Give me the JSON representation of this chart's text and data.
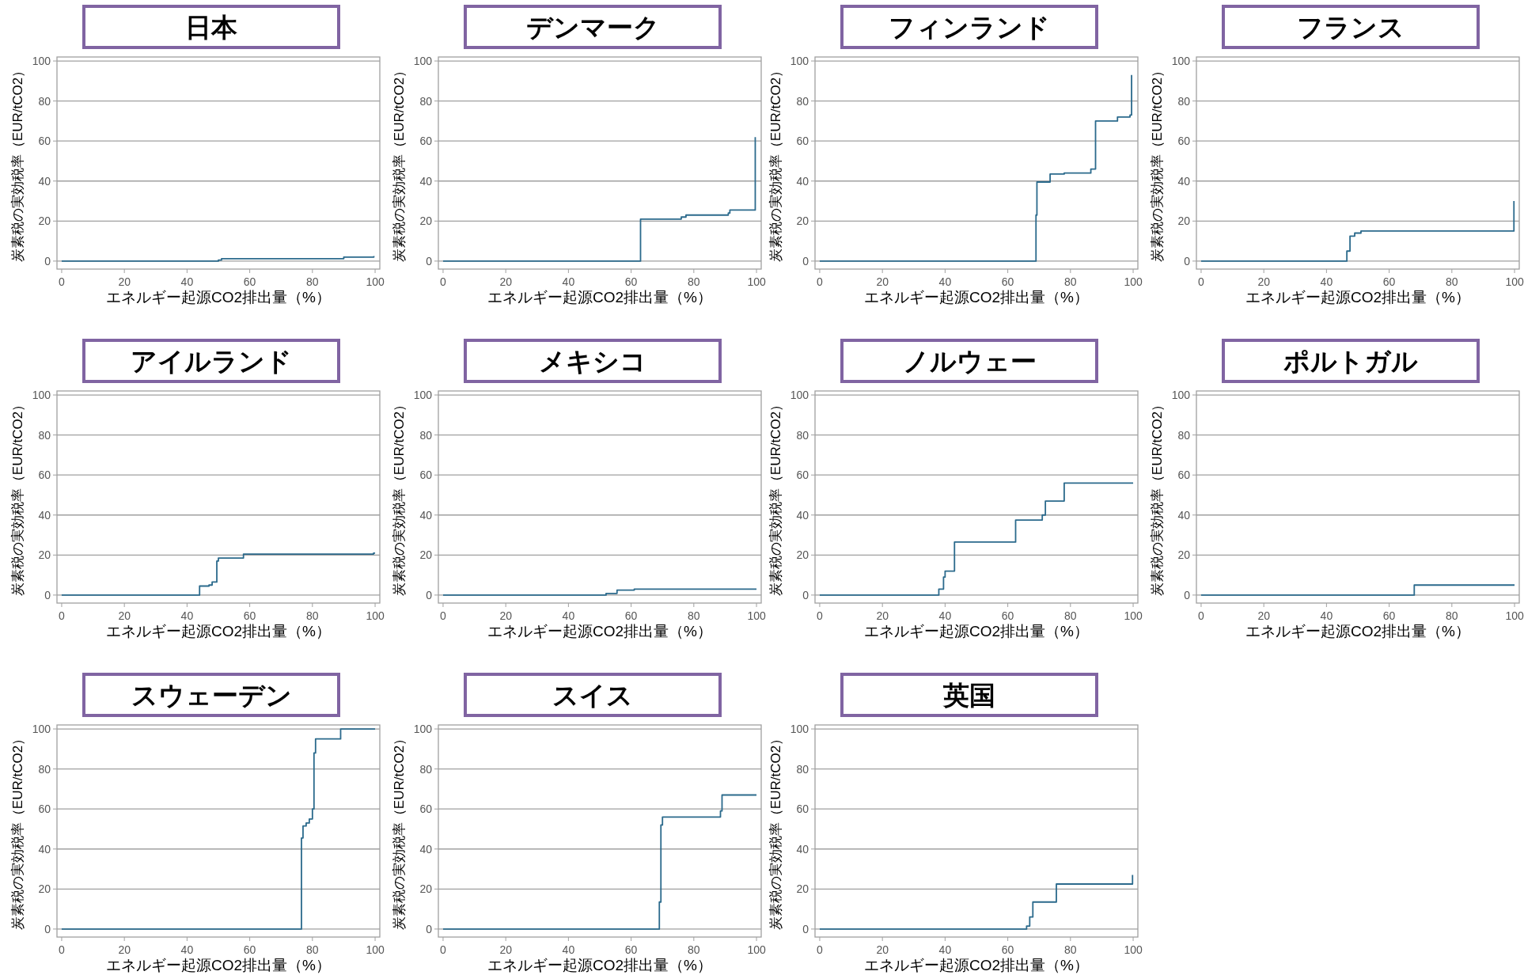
{
  "chart_data": [
    {
      "type": "step",
      "title": "日本",
      "xlabel": "エネルギー起源CO2排出量（%）",
      "ylabel": "炭素税の実効税率（EUR/tCO2）",
      "color": "#2b6a8c",
      "x": [
        0,
        50,
        51,
        90,
        99.6
      ],
      "values": [
        0,
        0.5,
        1.2,
        2,
        2.5
      ],
      "xlim": [
        -1.5,
        101.5
      ],
      "ylim": [
        -4,
        102
      ],
      "xticks": [
        0,
        20,
        40,
        60,
        80,
        100
      ],
      "yticks": [
        0,
        20,
        40,
        60,
        80,
        100
      ],
      "grid": "y"
    },
    {
      "type": "step",
      "title": "デンマーク",
      "xlabel": "エネルギー起源CO2排出量（%）",
      "ylabel": "炭素税の実効税率（EUR/tCO2）",
      "color": "#2b6a8c",
      "x": [
        0,
        63,
        76,
        77.5,
        91,
        91.5,
        99.6
      ],
      "values": [
        0,
        21,
        22,
        23,
        24,
        25.5,
        62
      ],
      "xlim": [
        -1.5,
        101.5
      ],
      "ylim": [
        -4,
        102
      ],
      "xticks": [
        0,
        20,
        40,
        60,
        80,
        100
      ],
      "yticks": [
        0,
        20,
        40,
        60,
        80,
        100
      ],
      "grid": "y"
    },
    {
      "type": "step",
      "title": "フィンランド",
      "xlabel": "エネルギー起源CO2排出量（%）",
      "ylabel": "炭素税の実効税率（EUR/tCO2）",
      "color": "#2b6a8c",
      "x": [
        0,
        69,
        69.3,
        73.5,
        78,
        86.5,
        88,
        95,
        99,
        99.5
      ],
      "values": [
        0,
        23,
        39.5,
        43.5,
        44,
        46,
        70,
        72,
        73,
        93
      ],
      "xlim": [
        -1.5,
        101.5
      ],
      "ylim": [
        -4,
        102
      ],
      "xticks": [
        0,
        20,
        40,
        60,
        80,
        100
      ],
      "yticks": [
        0,
        20,
        40,
        60,
        80,
        100
      ],
      "grid": "y"
    },
    {
      "type": "step",
      "title": "フランス",
      "xlabel": "エネルギー起源CO2排出量（%）",
      "ylabel": "炭素税の実効税率（EUR/tCO2）",
      "color": "#2b6a8c",
      "x": [
        0,
        46.5,
        47.5,
        49,
        51,
        99.8
      ],
      "values": [
        0,
        5,
        12.5,
        14,
        15,
        30
      ],
      "xlim": [
        -1.5,
        101.5
      ],
      "ylim": [
        -4,
        102
      ],
      "xticks": [
        0,
        20,
        40,
        60,
        80,
        100
      ],
      "yticks": [
        0,
        20,
        40,
        60,
        80,
        100
      ],
      "grid": "y"
    },
    {
      "type": "step",
      "title": "アイルランド",
      "xlabel": "エネルギー起源CO2排出量（%）",
      "ylabel": "炭素税の実効税率（EUR/tCO2）",
      "color": "#2b6a8c",
      "x": [
        0,
        44,
        47,
        48,
        49.5,
        50,
        58,
        99.5,
        100
      ],
      "values": [
        0,
        4.5,
        5,
        6.5,
        17,
        18.5,
        20.5,
        21,
        21
      ],
      "xlim": [
        -1.5,
        101.5
      ],
      "ylim": [
        -4,
        102
      ],
      "xticks": [
        0,
        20,
        40,
        60,
        80,
        100
      ],
      "yticks": [
        0,
        20,
        40,
        60,
        80,
        100
      ],
      "grid": "y"
    },
    {
      "type": "step",
      "title": "メキシコ",
      "xlabel": "エネルギー起源CO2排出量（%）",
      "ylabel": "炭素税の実効税率（EUR/tCO2）",
      "color": "#2b6a8c",
      "x": [
        0,
        52,
        55.5,
        61,
        100
      ],
      "values": [
        0,
        0.8,
        2.5,
        3,
        3
      ],
      "xlim": [
        -1.5,
        101.5
      ],
      "ylim": [
        -4,
        102
      ],
      "xticks": [
        0,
        20,
        40,
        60,
        80,
        100
      ],
      "yticks": [
        0,
        20,
        40,
        60,
        80,
        100
      ],
      "grid": "y"
    },
    {
      "type": "step",
      "title": "ノルウェー",
      "xlabel": "エネルギー起源CO2排出量（%）",
      "ylabel": "炭素税の実効税率（EUR/tCO2）",
      "color": "#2b6a8c",
      "x": [
        0,
        38,
        39.5,
        40,
        43,
        62.5,
        71,
        72,
        78,
        100
      ],
      "values": [
        0,
        3,
        9,
        12,
        26.5,
        37.5,
        40,
        47,
        56,
        56
      ],
      "xlim": [
        -1.5,
        101.5
      ],
      "ylim": [
        -4,
        102
      ],
      "xticks": [
        0,
        20,
        40,
        60,
        80,
        100
      ],
      "yticks": [
        0,
        20,
        40,
        60,
        80,
        100
      ],
      "grid": "y"
    },
    {
      "type": "step",
      "title": "ポルトガル",
      "xlabel": "エネルギー起源CO2排出量（%）",
      "ylabel": "炭素税の実効税率（EUR/tCO2）",
      "color": "#2b6a8c",
      "x": [
        0,
        68,
        100
      ],
      "values": [
        0,
        5,
        5
      ],
      "xlim": [
        -1.5,
        101.5
      ],
      "ylim": [
        -4,
        102
      ],
      "xticks": [
        0,
        20,
        40,
        60,
        80,
        100
      ],
      "yticks": [
        0,
        20,
        40,
        60,
        80,
        100
      ],
      "grid": "y"
    },
    {
      "type": "step",
      "title": "スウェーデン",
      "xlabel": "エネルギー起源CO2排出量（%）",
      "ylabel": "炭素税の実効税率（EUR/tCO2）",
      "color": "#2b6a8c",
      "x": [
        0,
        76.5,
        77,
        78,
        79,
        80,
        80.5,
        81,
        89,
        100
      ],
      "values": [
        0,
        45.5,
        51.5,
        53,
        55,
        60,
        88,
        95,
        100,
        100
      ],
      "xlim": [
        -1.5,
        101.5
      ],
      "ylim": [
        -4,
        102
      ],
      "xticks": [
        0,
        20,
        40,
        60,
        80,
        100
      ],
      "yticks": [
        0,
        20,
        40,
        60,
        80,
        100
      ],
      "grid": "y"
    },
    {
      "type": "step",
      "title": "スイス",
      "xlabel": "エネルギー起源CO2排出量（%）",
      "ylabel": "炭素税の実効税率（EUR/tCO2）",
      "color": "#2b6a8c",
      "x": [
        0,
        69,
        69.5,
        70,
        88.5,
        89,
        100
      ],
      "values": [
        0,
        13.5,
        52,
        56,
        59,
        67,
        67
      ],
      "xlim": [
        -1.5,
        101.5
      ],
      "ylim": [
        -4,
        102
      ],
      "xticks": [
        0,
        20,
        40,
        60,
        80,
        100
      ],
      "yticks": [
        0,
        20,
        40,
        60,
        80,
        100
      ],
      "grid": "y"
    },
    {
      "type": "step",
      "title": "英国",
      "xlabel": "エネルギー起源CO2排出量（%）",
      "ylabel": "炭素税の実効税率（EUR/tCO2）",
      "color": "#2b6a8c",
      "x": [
        0,
        66,
        67,
        68,
        75.5,
        99.8
      ],
      "values": [
        0,
        1.5,
        6,
        13.5,
        22.5,
        27
      ],
      "xlim": [
        -1.5,
        101.5
      ],
      "ylim": [
        -4,
        102
      ],
      "xticks": [
        0,
        20,
        40,
        60,
        80,
        100
      ],
      "yticks": [
        0,
        20,
        40,
        60,
        80,
        100
      ],
      "grid": "y"
    }
  ]
}
